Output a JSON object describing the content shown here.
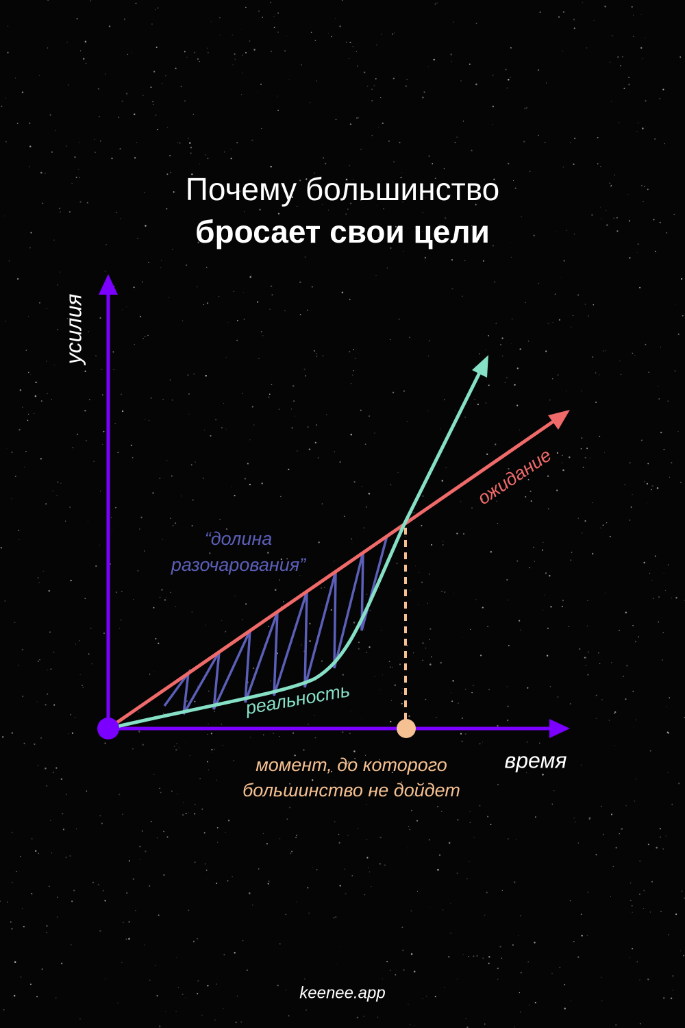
{
  "title": {
    "line1": "Почему большинство",
    "line2": "бросает свои цели"
  },
  "axes": {
    "y": "усилия",
    "x": "время"
  },
  "labels": {
    "expectation": "ожидание",
    "reality": "реальность",
    "valley": [
      "“долина",
      "разочарования”"
    ],
    "moment": [
      "момент, до которого",
      "большинство не дойдет"
    ]
  },
  "footer": "keenee.app"
}
